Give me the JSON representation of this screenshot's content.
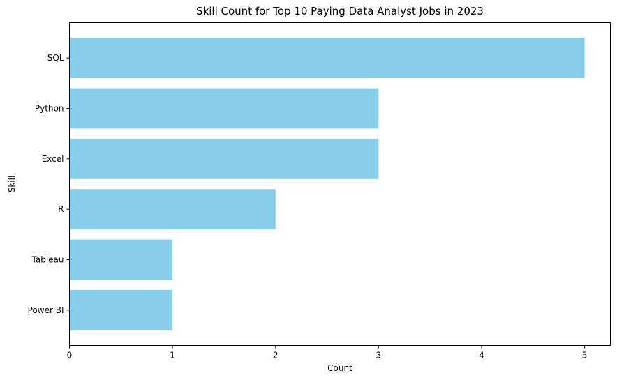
{
  "chart_data": {
    "type": "bar",
    "orientation": "horizontal",
    "title": "Skill Count for Top 10 Paying Data Analyst Jobs in 2023",
    "xlabel": "Count",
    "ylabel": "Skill",
    "categories": [
      "SQL",
      "Python",
      "Excel",
      "R",
      "Tableau",
      "Power BI"
    ],
    "values": [
      5,
      3,
      3,
      2,
      1,
      1
    ],
    "xlim": [
      0,
      5.25
    ],
    "xticks": [
      0,
      1,
      2,
      3,
      4,
      5
    ],
    "grid": false,
    "bar_color": "#87CEEB"
  }
}
